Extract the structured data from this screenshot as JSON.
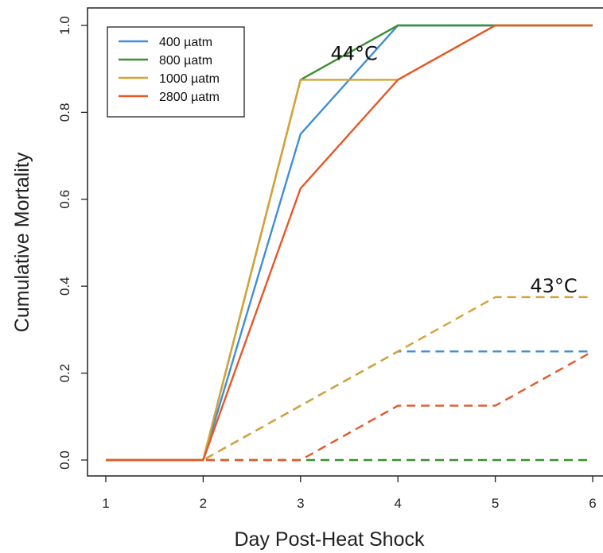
{
  "chart_data": {
    "type": "line",
    "xlabel": "Day Post-Heat Shock",
    "ylabel": "Cumulative Mortality",
    "xlim": [
      1,
      6
    ],
    "ylim": [
      0,
      1
    ],
    "x_ticks": [
      "1",
      "2",
      "3",
      "4",
      "5",
      "6"
    ],
    "y_ticks": [
      "0.0",
      "0.2",
      "0.4",
      "0.6",
      "0.8",
      "1.0"
    ],
    "grid": false,
    "legend_position": "top-left",
    "legend": [
      {
        "label": "400 µatm",
        "color": "#3f8fd6"
      },
      {
        "label": "800 µatm",
        "color": "#3a8f2e"
      },
      {
        "label": "1000 µatm",
        "color": "#d6a235"
      },
      {
        "label": "2800 µatm",
        "color": "#e4582a"
      }
    ],
    "annotations": [
      {
        "text": "44°C",
        "x": 3.55,
        "y": 0.935
      },
      {
        "text": "43°C",
        "x": 5.6,
        "y": 0.4
      }
    ],
    "x": [
      1,
      2,
      3,
      4,
      5,
      6
    ],
    "series": [
      {
        "group": "44°C",
        "legend_index": 0,
        "style": "solid",
        "color": "#3f8fd6",
        "values": [
          0,
          0,
          0.75,
          1.0,
          1.0,
          1.0
        ]
      },
      {
        "group": "44°C",
        "legend_index": 1,
        "style": "solid",
        "color": "#3a8f2e",
        "values": [
          0,
          0,
          0.875,
          1.0,
          1.0,
          1.0
        ]
      },
      {
        "group": "44°C",
        "legend_index": 2,
        "style": "solid",
        "color": "#d6a235",
        "values": [
          0,
          0,
          0.875,
          0.875,
          1.0,
          1.0
        ]
      },
      {
        "group": "44°C",
        "legend_index": 3,
        "style": "solid",
        "color": "#e4582a",
        "values": [
          0,
          0,
          0.625,
          0.875,
          1.0,
          1.0
        ]
      },
      {
        "group": "43°C",
        "legend_index": 0,
        "style": "dashed",
        "color": "#3f8fd6",
        "values": [
          0,
          0,
          0.125,
          0.25,
          0.25,
          0.25
        ]
      },
      {
        "group": "43°C",
        "legend_index": 1,
        "style": "dashed",
        "color": "#3a8f2e",
        "values": [
          0,
          0,
          0,
          0,
          0,
          0
        ]
      },
      {
        "group": "43°C",
        "legend_index": 2,
        "style": "dashed",
        "color": "#d6a235",
        "values": [
          0,
          0,
          0.125,
          0.25,
          0.375,
          0.375
        ]
      },
      {
        "group": "43°C",
        "legend_index": 3,
        "style": "dashed",
        "color": "#e4582a",
        "values": [
          0,
          0,
          0,
          0.125,
          0.125,
          0.25
        ]
      }
    ]
  }
}
